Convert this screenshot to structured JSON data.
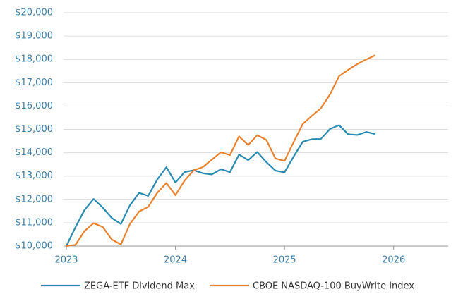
{
  "chart_data": {
    "type": "line",
    "x": [
      2023,
      2023.083,
      2023.167,
      2023.25,
      2023.333,
      2023.417,
      2023.5,
      2023.583,
      2023.667,
      2023.75,
      2023.833,
      2023.917,
      2024,
      2024.083,
      2024.167,
      2024.25,
      2024.333,
      2024.417,
      2024.5,
      2024.583,
      2024.667,
      2024.75,
      2024.833,
      2024.917,
      2025,
      2025.083,
      2025.167,
      2025.25,
      2025.333,
      2025.417,
      2025.5,
      2025.583,
      2025.667,
      2025.75,
      2025.833
    ],
    "series": [
      {
        "name": "ZEGA-ETF Dividend Max",
        "color": "#2a8bb0",
        "values": [
          10000,
          10800,
          11550,
          12020,
          11650,
          11200,
          10950,
          11750,
          12280,
          12150,
          12850,
          13380,
          12720,
          13170,
          13250,
          13120,
          13070,
          13290,
          13170,
          13920,
          13680,
          14030,
          13600,
          13230,
          13160,
          13830,
          14470,
          14580,
          14590,
          15020,
          15180,
          14790,
          14760,
          14890,
          14800
        ]
      },
      {
        "name": "CBOE NASDAQ-100 BuyWrite Index",
        "color": "#e8822f",
        "values": [
          10000,
          10050,
          10650,
          10980,
          10820,
          10280,
          10070,
          10950,
          11480,
          11680,
          12280,
          12700,
          12180,
          12800,
          13250,
          13380,
          13700,
          14020,
          13900,
          14700,
          14330,
          14750,
          14550,
          13750,
          13650,
          14450,
          15230,
          15580,
          15900,
          16500,
          17280,
          17550,
          17800,
          18000,
          18180
        ]
      }
    ],
    "xlim": [
      2023,
      2026.5
    ],
    "xticks": [
      2023,
      2024,
      2025,
      2026
    ],
    "ylim": [
      10000,
      20000
    ],
    "yticks": [
      {
        "value": 10000,
        "label": "$10,000"
      },
      {
        "value": 11000,
        "label": "$11,000"
      },
      {
        "value": 12000,
        "label": "$12,000"
      },
      {
        "value": 13000,
        "label": "$13,000"
      },
      {
        "value": 14000,
        "label": "$14,000"
      },
      {
        "value": 15000,
        "label": "$15,000"
      },
      {
        "value": 16000,
        "label": "$16,000"
      },
      {
        "value": 17000,
        "label": "$17,000"
      },
      {
        "value": 18000,
        "label": "$18,000"
      },
      {
        "value": 19000,
        "label": "$19,000"
      },
      {
        "value": 20000,
        "label": "$20,000"
      }
    ],
    "grid": true,
    "legend": "bottom"
  }
}
